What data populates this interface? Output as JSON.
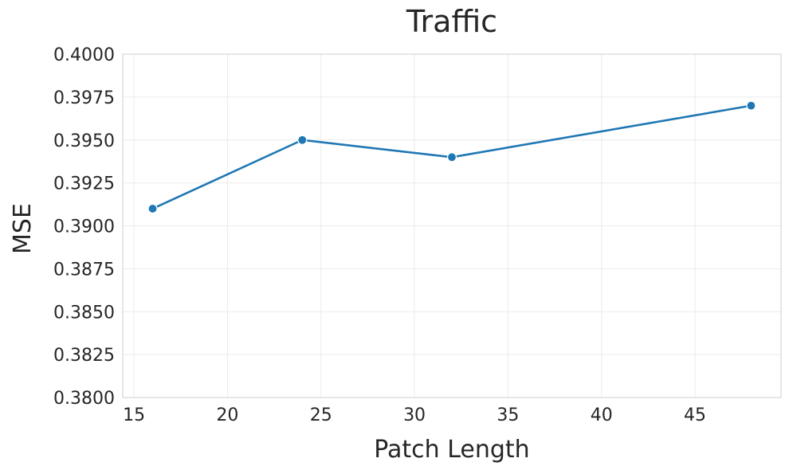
{
  "chart_data": {
    "type": "line",
    "title": "Traffic",
    "xlabel": "Patch Length",
    "ylabel": "MSE",
    "x": [
      16,
      24,
      32,
      48
    ],
    "series": [
      {
        "values": [
          0.391,
          0.395,
          0.394,
          0.397
        ]
      }
    ],
    "xlim": [
      14.4,
      49.6
    ],
    "ylim": [
      0.38,
      0.4
    ],
    "xticks": [
      15,
      20,
      25,
      30,
      35,
      40,
      45
    ],
    "yticks": [
      0.38,
      0.3825,
      0.385,
      0.3875,
      0.39,
      0.3925,
      0.395,
      0.3975,
      0.4
    ],
    "ytick_labels": [
      "0.3800",
      "0.3825",
      "0.3850",
      "0.3875",
      "0.3900",
      "0.3925",
      "0.3950",
      "0.3975",
      "0.4000"
    ],
    "grid": true,
    "colors": {
      "line": "#1f77b4",
      "text": "#262626",
      "grid": "#ebebeb",
      "frame": "#cccccc"
    }
  }
}
